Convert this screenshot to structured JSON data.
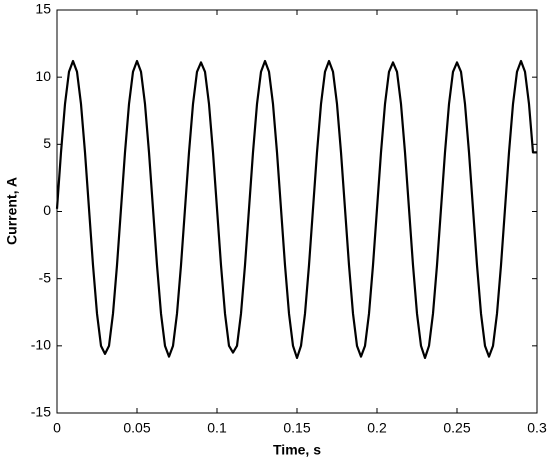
{
  "chart_data": {
    "type": "line",
    "xlabel": "Time, s",
    "ylabel": "Current, A",
    "xlim": [
      0,
      0.3
    ],
    "ylim": [
      -15,
      15
    ],
    "xticks": [
      0,
      0.05,
      0.1,
      0.15,
      0.2,
      0.25,
      0.3
    ],
    "yticks": [
      -15,
      -10,
      -5,
      0,
      5,
      10,
      15
    ],
    "grid": false,
    "x": [
      0,
      0.0025,
      0.005,
      0.0075,
      0.01,
      0.0125,
      0.015,
      0.0175,
      0.02,
      0.0225,
      0.025,
      0.0275,
      0.03,
      0.0325,
      0.035,
      0.0375,
      0.04,
      0.0425,
      0.045,
      0.0475,
      0.05,
      0.0525,
      0.055,
      0.0575,
      0.06,
      0.0625,
      0.065,
      0.0675,
      0.07,
      0.0725,
      0.075,
      0.0775,
      0.08,
      0.0825,
      0.085,
      0.0875,
      0.09,
      0.0925,
      0.095,
      0.0975,
      0.1,
      0.1025,
      0.105,
      0.1075,
      0.11,
      0.1125,
      0.115,
      0.1175,
      0.12,
      0.1225,
      0.125,
      0.1275,
      0.13,
      0.1325,
      0.135,
      0.1375,
      0.14,
      0.1425,
      0.145,
      0.1475,
      0.15,
      0.1525,
      0.155,
      0.1575,
      0.16,
      0.1625,
      0.165,
      0.1675,
      0.17,
      0.1725,
      0.175,
      0.1775,
      0.18,
      0.1825,
      0.185,
      0.1875,
      0.19,
      0.1925,
      0.195,
      0.1975,
      0.2,
      0.2025,
      0.205,
      0.2075,
      0.21,
      0.2125,
      0.215,
      0.2175,
      0.22,
      0.2225,
      0.225,
      0.2275,
      0.23,
      0.2325,
      0.235,
      0.2375,
      0.24,
      0.2425,
      0.245,
      0.2475,
      0.25,
      0.2525,
      0.255,
      0.2575,
      0.26,
      0.2625,
      0.265,
      0.2675,
      0.27,
      0.2725,
      0.275,
      0.2775,
      0.28,
      0.2825,
      0.285,
      0.2875,
      0.29,
      0.2925,
      0.295,
      0.2975,
      0.3
    ],
    "series": [
      {
        "color": "#000000",
        "values": [
          0.2,
          4.4,
          8,
          10.4,
          11.2,
          10.4,
          8,
          4.4,
          0.2,
          -4,
          -7.6,
          -10,
          -10.6,
          -10,
          -7.6,
          -4,
          0.2,
          4.4,
          8,
          10.4,
          11.2,
          10.4,
          8,
          4.4,
          0.2,
          -4,
          -7.6,
          -10,
          -10.8,
          -10,
          -7.6,
          -4,
          0.2,
          4.4,
          8,
          10.4,
          11.1,
          10.4,
          8,
          4.4,
          0.2,
          -4,
          -7.6,
          -10,
          -10.5,
          -10,
          -7.6,
          -4,
          0.2,
          4.4,
          8,
          10.4,
          11.2,
          10.4,
          8,
          4.4,
          0.2,
          -4,
          -7.6,
          -10,
          -10.9,
          -10,
          -7.6,
          -4,
          0.2,
          4.4,
          8,
          10.4,
          11.2,
          10.4,
          8,
          4.4,
          0.2,
          -4,
          -7.6,
          -10,
          -10.8,
          -10,
          -7.6,
          -4,
          0.2,
          4.4,
          8,
          10.4,
          11.1,
          10.4,
          8,
          4.4,
          0.2,
          -4,
          -7.6,
          -10,
          -10.9,
          -10,
          -7.6,
          -4,
          0.2,
          4.4,
          8,
          10.4,
          11.1,
          10.4,
          8,
          4.4,
          0.2,
          -4,
          -7.6,
          -10,
          -10.8,
          -10,
          -7.6,
          -4,
          0.2,
          4.4,
          8,
          10.4,
          11.2,
          10.4,
          8,
          4.4,
          4.4
        ]
      }
    ]
  }
}
